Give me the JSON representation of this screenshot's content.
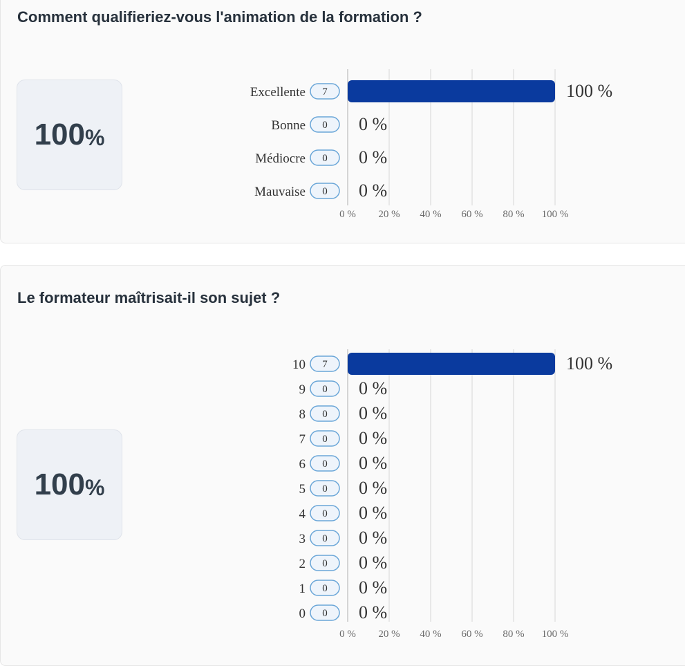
{
  "questions": [
    {
      "title": "Comment qualifieriez-vous l'animation de la formation ?",
      "score": {
        "value": "100",
        "unit": "%"
      },
      "chart_data": {
        "type": "bar",
        "orientation": "horizontal",
        "categories": [
          "Excellente",
          "Bonne",
          "Médiocre",
          "Mauvaise"
        ],
        "counts": [
          7,
          0,
          0,
          0
        ],
        "values": [
          100,
          0,
          0,
          0
        ],
        "value_labels": [
          "100 %",
          "0 %",
          "0 %",
          "0 %"
        ],
        "x_ticks": [
          "0 %",
          "20 %",
          "40 %",
          "60 %",
          "80 %",
          "100 %"
        ],
        "xlim": [
          0,
          100
        ],
        "grid": true,
        "bar_color": "#0a3a9e"
      }
    },
    {
      "title": "Le formateur maîtrisait-il son sujet ?",
      "score": {
        "value": "100",
        "unit": "%"
      },
      "chart_data": {
        "type": "bar",
        "orientation": "horizontal",
        "categories": [
          "10",
          "9",
          "8",
          "7",
          "6",
          "5",
          "4",
          "3",
          "2",
          "1",
          "0"
        ],
        "counts": [
          7,
          0,
          0,
          0,
          0,
          0,
          0,
          0,
          0,
          0,
          0
        ],
        "values": [
          100,
          0,
          0,
          0,
          0,
          0,
          0,
          0,
          0,
          0,
          0
        ],
        "value_labels": [
          "100 %",
          "0 %",
          "0 %",
          "0 %",
          "0 %",
          "0 %",
          "0 %",
          "0 %",
          "0 %",
          "0 %",
          "0 %"
        ],
        "x_ticks": [
          "0 %",
          "20 %",
          "40 %",
          "60 %",
          "80 %",
          "100 %"
        ],
        "xlim": [
          0,
          100
        ],
        "grid": true,
        "bar_color": "#0a3a9e"
      }
    }
  ]
}
